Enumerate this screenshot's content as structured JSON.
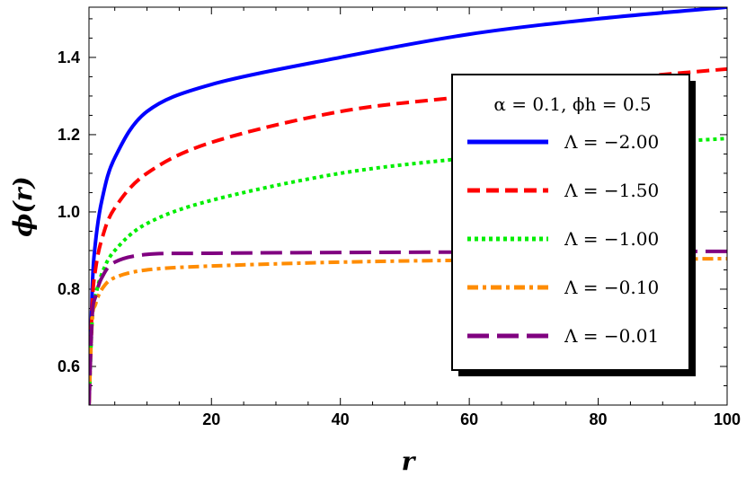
{
  "chart_data": {
    "type": "line",
    "title": "",
    "xlabel": "r",
    "ylabel": "ϕ(r)",
    "xlim": [
      1,
      100
    ],
    "ylim": [
      0.5,
      1.53
    ],
    "x_ticks": [
      20,
      40,
      60,
      80,
      100
    ],
    "x_tick_labels": [
      "20",
      "40",
      "60",
      "80",
      "100"
    ],
    "y_ticks": [
      0.6,
      0.8,
      1.0,
      1.2,
      1.4
    ],
    "y_tick_labels": [
      "0.6",
      "0.8",
      "1.0",
      "1.2",
      "1.4"
    ],
    "grid": false,
    "legend_position": "right",
    "legend_title": "α = 0.1,  ϕh = 0.5",
    "x": [
      1,
      1.5,
      2,
      3,
      5,
      10,
      20,
      40,
      60,
      80,
      100
    ],
    "series": [
      {
        "name": "Λ = −2.00",
        "color": "#0000ff",
        "dash": "solid",
        "values": [
          0.5,
          0.8,
          0.92,
          1.03,
          1.14,
          1.26,
          1.33,
          1.4,
          1.46,
          1.5,
          1.53
        ]
      },
      {
        "name": "Λ = −1.50",
        "color": "#ff0000",
        "dash": "dashed",
        "values": [
          0.5,
          0.76,
          0.85,
          0.93,
          1.01,
          1.1,
          1.18,
          1.26,
          1.3,
          1.34,
          1.37
        ]
      },
      {
        "name": "Λ = −1.00",
        "color": "#00ee00",
        "dash": "dotted",
        "values": [
          0.5,
          0.72,
          0.78,
          0.84,
          0.9,
          0.97,
          1.03,
          1.1,
          1.14,
          1.17,
          1.19
        ]
      },
      {
        "name": "Λ = −0.10",
        "color": "#ff8c00",
        "dash": "dashdot",
        "values": [
          0.5,
          0.72,
          0.76,
          0.8,
          0.83,
          0.85,
          0.86,
          0.87,
          0.875,
          0.877,
          0.879
        ]
      },
      {
        "name": "Λ = −0.01",
        "color": "#800080",
        "dash": "longdash",
        "values": [
          0.5,
          0.73,
          0.78,
          0.83,
          0.87,
          0.89,
          0.893,
          0.895,
          0.896,
          0.897,
          0.898
        ]
      }
    ]
  }
}
